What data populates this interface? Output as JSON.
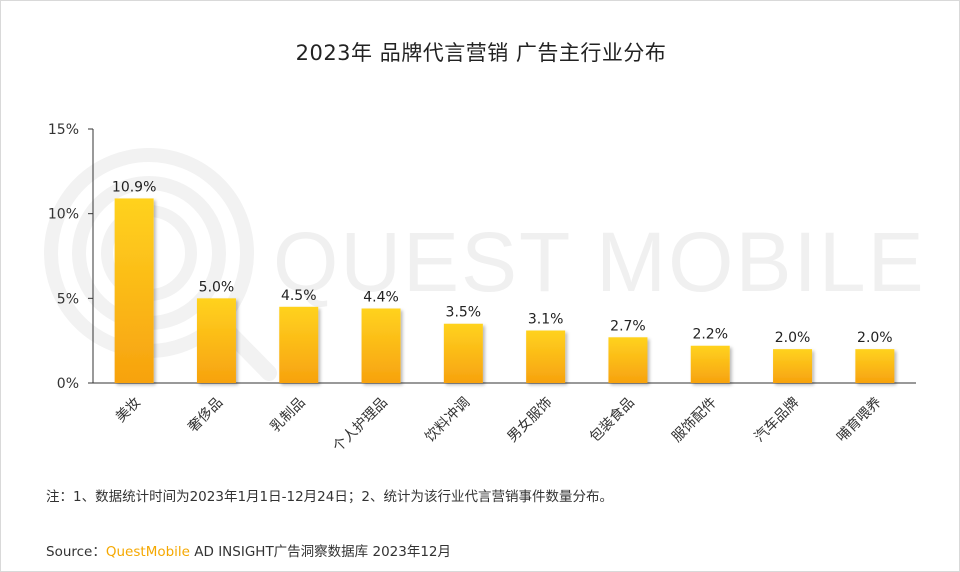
{
  "title": "2023年 品牌代言营销 广告主行业分布",
  "watermark": "QUEST MOBILE",
  "note": "注：1、数据统计时间为2023年1月1日-12月24日；2、统计为该行业代言营销事件数量分布。",
  "source": {
    "prefix": "Source：",
    "brand": "QuestMobile",
    "suffix": " AD INSIGHT广告洞察数据库 2023年12月"
  },
  "colors": {
    "bar_top": "#ffd21f",
    "bar_bottom": "#f7a20f",
    "brand": "#f5a800",
    "axis": "#333333"
  },
  "chart_data": {
    "type": "bar",
    "categories": [
      "美妆",
      "奢侈品",
      "乳制品",
      "个人护理品",
      "饮料冲调",
      "男女服饰",
      "包装食品",
      "服饰配件",
      "汽车品牌",
      "哺育喂养"
    ],
    "values": [
      10.9,
      5.0,
      4.5,
      4.4,
      3.5,
      3.1,
      2.7,
      2.2,
      2.0,
      2.0
    ],
    "value_labels": [
      "10.9%",
      "5.0%",
      "4.5%",
      "4.4%",
      "3.5%",
      "3.1%",
      "2.7%",
      "2.2%",
      "2.0%",
      "2.0%"
    ],
    "yticks": [
      0,
      5,
      10,
      15
    ],
    "ytick_labels": [
      "0%",
      "5%",
      "10%",
      "15%"
    ],
    "ylim": [
      0,
      15
    ],
    "grid": false,
    "legend": "none"
  }
}
